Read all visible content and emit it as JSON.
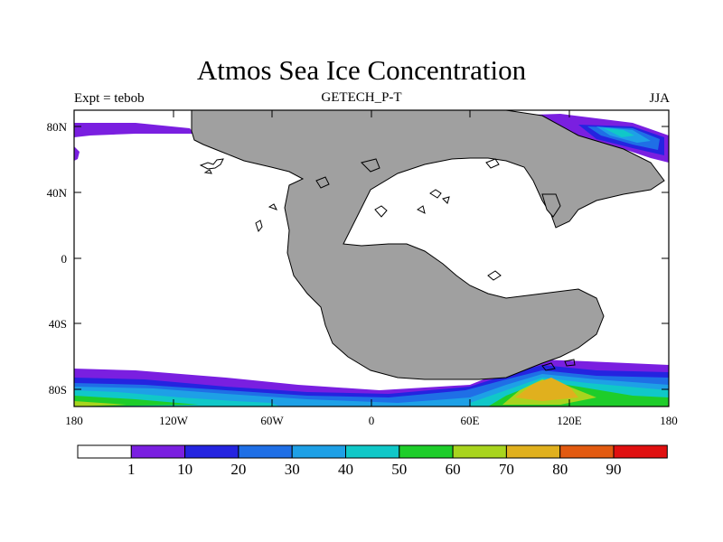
{
  "title": "Atmos Sea Ice Concentration",
  "subtitle": "GETECH_P-T",
  "left_label": "Expt = tebob",
  "right_label": "JJA",
  "map": {
    "lat_ticks": [
      "80N",
      "40N",
      "0",
      "40S",
      "80S"
    ],
    "lon_ticks": [
      "180",
      "120W",
      "60W",
      "0",
      "60E",
      "120E",
      "180"
    ],
    "land_color": "#a0a0a0",
    "ocean_color": "#ffffff"
  },
  "colorbar": {
    "labels": [
      "1",
      "10",
      "20",
      "30",
      "40",
      "50",
      "60",
      "70",
      "80",
      "90"
    ],
    "colors": [
      "#ffffff",
      "#7a1fe0",
      "#2424e0",
      "#1f6fe6",
      "#1ea0e6",
      "#10c8c8",
      "#1ecd2a",
      "#a8d41e",
      "#e0b01e",
      "#e25a10",
      "#e01010"
    ]
  }
}
